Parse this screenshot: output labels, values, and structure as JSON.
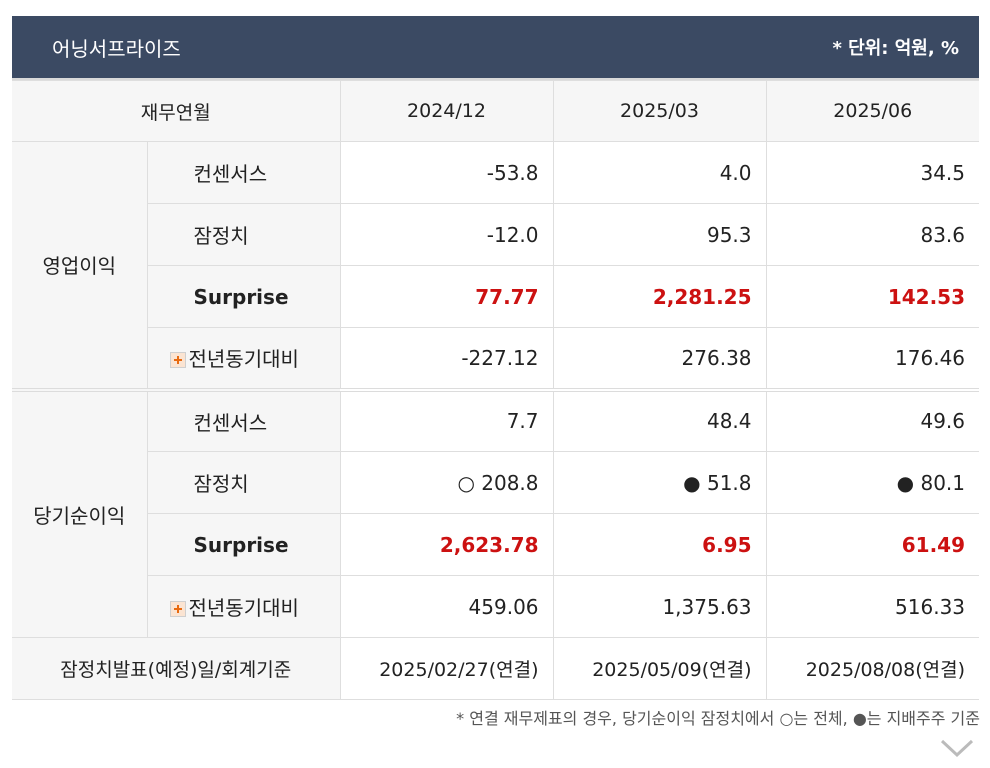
{
  "header": {
    "title": "어닝서프라이즈",
    "unit": "* 단위: 억원, %"
  },
  "columns": {
    "label": "재무연월",
    "periods": [
      "2024/12",
      "2025/03",
      "2025/06"
    ]
  },
  "groups": [
    {
      "name": "영업이익",
      "rows": [
        {
          "label": "컨센서스",
          "values": [
            "-53.8",
            "4.0",
            "34.5"
          ]
        },
        {
          "label": "잠정치",
          "values": [
            "-12.0",
            "95.3",
            "83.6"
          ]
        },
        {
          "label": "Surprise",
          "values": [
            "77.77",
            "2,281.25",
            "142.53"
          ]
        },
        {
          "label": "전년동기대비",
          "values": [
            "-227.12",
            "276.38",
            "176.46"
          ]
        }
      ]
    },
    {
      "name": "당기순이익",
      "rows": [
        {
          "label": "컨센서스",
          "values": [
            "7.7",
            "48.4",
            "49.6"
          ]
        },
        {
          "label": "잠정치",
          "values": [
            "○ 208.8",
            "● 51.8",
            "● 80.1"
          ]
        },
        {
          "label": "Surprise",
          "values": [
            "2,623.78",
            "6.95",
            "61.49"
          ]
        },
        {
          "label": "전년동기대비",
          "values": [
            "459.06",
            "1,375.63",
            "516.33"
          ]
        }
      ]
    }
  ],
  "footer": {
    "label": "잠정치발표(예정)일/회계기준",
    "values": [
      "2025/02/27(연결)",
      "2025/05/09(연결)",
      "2025/08/08(연결)"
    ]
  },
  "note": "* 연결 재무제표의 경우, 당기순이익 잠정치에서 ○는 전체, ●는 지배주주 기준",
  "colors": {
    "header_bg": "#3b4a63",
    "surprise": "#cc1111",
    "label_bg": "#f6f6f6"
  }
}
